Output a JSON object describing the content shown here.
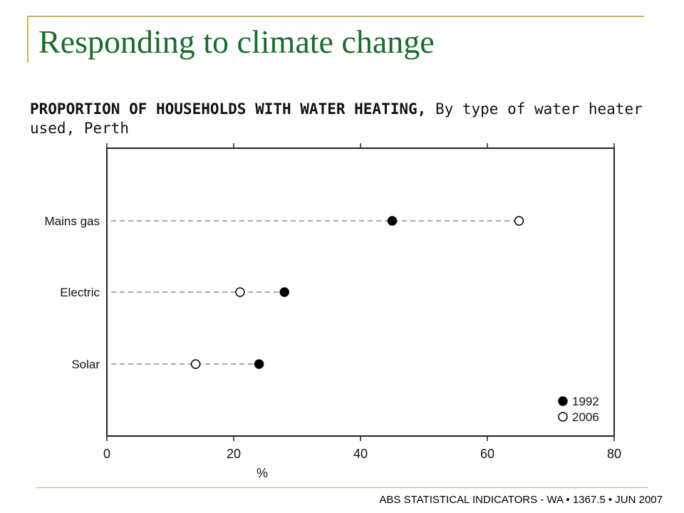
{
  "slide": {
    "title": "Responding to climate change",
    "footer": "ABS STATISTICAL INDICATORS - WA • 1367.5 • JUN 2007"
  },
  "colors": {
    "title": "#1a6b2e",
    "accent": "#c8b561"
  },
  "chart_data": {
    "type": "scatter",
    "title_bold": "PROPORTION OF HOUSEHOLDS WITH WATER HEATING,",
    "title_rest": " By type of water heater used, Perth",
    "xlabel": "%",
    "xlim": [
      0,
      80
    ],
    "xticks": [
      0,
      20,
      40,
      60,
      80
    ],
    "categories": [
      "Mains gas",
      "Electric",
      "Solar"
    ],
    "series": [
      {
        "name": "1992",
        "marker": "filled",
        "values": [
          45,
          28,
          24
        ]
      },
      {
        "name": "2006",
        "marker": "hollow",
        "values": [
          65,
          21,
          14
        ]
      }
    ],
    "legend": "bottom-right",
    "grid": false
  }
}
